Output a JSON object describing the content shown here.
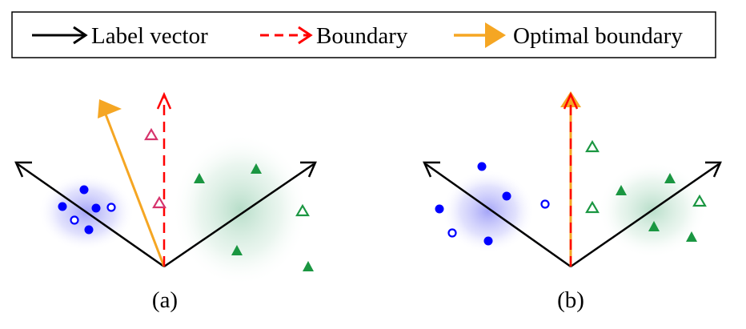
{
  "legend": {
    "items": [
      {
        "label": "Label vector",
        "color": "#000000",
        "style": "solid-arrow"
      },
      {
        "label": "Boundary",
        "color": "#ff0000",
        "style": "dashed-arrow"
      },
      {
        "label": "Optimal boundary",
        "color": "#f5a623",
        "style": "thick-arrow"
      }
    ]
  },
  "colors": {
    "class_blue": "#0000ff",
    "class_green": "#1a9641",
    "misclassified": "#d6336c",
    "blue_glow": "#6f6ff5",
    "green_glow": "#74c095"
  },
  "panels": [
    {
      "label": "(a)"
    },
    {
      "label": "(b)"
    }
  ]
}
